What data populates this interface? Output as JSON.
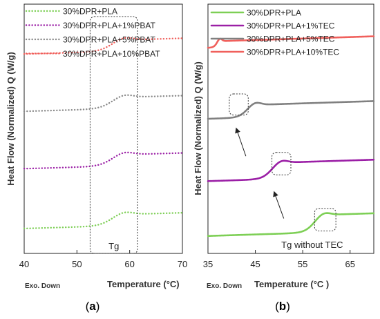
{
  "chart_data": [
    {
      "panel_label": "a",
      "type": "line",
      "xlabel": "Temperature (°C)",
      "ylabel": "Heat Flow (Normalized) Q (W/g)",
      "exo_label": "Exo. Down",
      "xlim": [
        40,
        70
      ],
      "xticks": [
        40,
        50,
        60,
        70
      ],
      "ylim": [
        0,
        1
      ],
      "y_ticks_shown": false,
      "grid": false,
      "legend_placement": "top-left",
      "line_style": "dotted",
      "series": [
        {
          "name": "30%DPR+PLA",
          "color": "#7dcf55",
          "offset": 0.1,
          "tg_onset": 53.5,
          "tg_end": 59,
          "step": 0.045,
          "x_start": 40
        },
        {
          "name": "30%DPR+PLA+1%PBAT",
          "color": "#9b1fa6",
          "offset": 0.34,
          "tg_onset": 53.5,
          "tg_end": 59,
          "step": 0.045,
          "x_start": 40
        },
        {
          "name": "30%DPR+PLA+5%PBAT",
          "color": "#8a8a8a",
          "offset": 0.57,
          "tg_onset": 53.5,
          "tg_end": 59,
          "step": 0.045,
          "x_start": 40
        },
        {
          "name": "30%DPR+PLA+10%PBAT",
          "color": "#f0605c",
          "offset": 0.8,
          "tg_onset": 53.5,
          "tg_end": 59,
          "step": 0.045,
          "x_start": 40
        }
      ],
      "annotations": [
        {
          "type": "box",
          "x": [
            52.5,
            61.5
          ],
          "y": [
            0.0,
            0.95
          ],
          "text": "Tg"
        }
      ]
    },
    {
      "panel_label": "b",
      "type": "line",
      "xlabel": "Temperature (°C )",
      "ylabel": "Heat Flow (Normalized) Q (W/g)",
      "exo_label": "Exo. Down",
      "xlim": [
        35,
        70
      ],
      "xticks": [
        35,
        45,
        55,
        65
      ],
      "ylim": [
        0,
        1
      ],
      "y_ticks_shown": false,
      "grid": false,
      "legend_placement": "top-left",
      "line_style": "solid",
      "series": [
        {
          "name": "30%DPR+PLA",
          "color": "#7dcf55",
          "offset": 0.07,
          "tg_onset": 55,
          "tg_end": 59.5,
          "step": 0.07,
          "x_start": 35
        },
        {
          "name": "30%DPR+PLA+1%TEC",
          "color": "#9b1fa6",
          "offset": 0.29,
          "tg_onset": 46,
          "tg_end": 50.5,
          "step": 0.065,
          "x_start": 35
        },
        {
          "name": "30%DPR+PLA+5%TEC",
          "color": "#808080",
          "offset": 0.54,
          "tg_onset": 41,
          "tg_end": 45,
          "step": 0.05,
          "x_start": 35
        },
        {
          "name": "30%DPR+PLA+10%TEC",
          "color": "#f0605c",
          "offset": 0.825,
          "tg_onset": 36,
          "tg_end": 37.5,
          "step": 0.025,
          "x_start": 35
        }
      ],
      "annotations": [
        {
          "type": "box",
          "x": [
            57.5,
            62
          ],
          "y": [
            0.09,
            0.18
          ]
        },
        {
          "type": "box",
          "x": [
            48.5,
            52.5
          ],
          "y": [
            0.315,
            0.405
          ]
        },
        {
          "type": "box",
          "x": [
            39.5,
            43.5
          ],
          "y": [
            0.555,
            0.64
          ]
        },
        {
          "type": "arrow",
          "from": [
            51,
            0.14
          ],
          "to": [
            49,
            0.245
          ]
        },
        {
          "type": "arrow",
          "from": [
            43,
            0.39
          ],
          "to": [
            41,
            0.5
          ]
        },
        {
          "type": "text",
          "x": 57,
          "y": 0.0,
          "text": "Tg without TEC"
        }
      ]
    }
  ]
}
